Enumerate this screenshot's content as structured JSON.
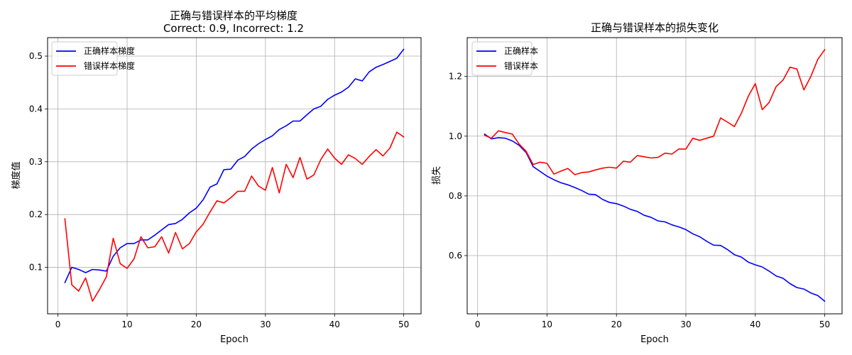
{
  "colors": {
    "blue": "#0000ff",
    "red": "#ff0000",
    "grid": "#b0b0b0"
  },
  "chart_data": [
    {
      "type": "line",
      "title": "正确与错误样本的平均梯度",
      "subtitle": "Correct: 0.9, Incorrect: 1.2",
      "xlabel": "Epoch",
      "ylabel": "梯度值",
      "xlim": [
        -1.5,
        52.5
      ],
      "ylim": [
        0.012,
        0.535
      ],
      "xticks": [
        0,
        10,
        20,
        30,
        40,
        50
      ],
      "yticks": [
        0.1,
        0.2,
        0.3,
        0.4,
        0.5
      ],
      "ytick_labels": [
        "0.1",
        "0.2",
        "0.3",
        "0.4",
        "0.5"
      ],
      "grid": true,
      "legend": "upper-left",
      "x": [
        1,
        2,
        3,
        4,
        5,
        6,
        7,
        8,
        9,
        10,
        11,
        12,
        13,
        14,
        15,
        16,
        17,
        18,
        19,
        20,
        21,
        22,
        23,
        24,
        25,
        26,
        27,
        28,
        29,
        30,
        31,
        32,
        33,
        34,
        35,
        36,
        37,
        38,
        39,
        40,
        41,
        42,
        43,
        44,
        45,
        46,
        47,
        48,
        49,
        50
      ],
      "series": [
        {
          "name": "正确样本梯度",
          "color": "#0000ff",
          "values": [
            0.071,
            0.1,
            0.096,
            0.09,
            0.096,
            0.095,
            0.093,
            0.121,
            0.137,
            0.145,
            0.145,
            0.152,
            0.152,
            0.161,
            0.171,
            0.181,
            0.183,
            0.191,
            0.203,
            0.212,
            0.228,
            0.252,
            0.258,
            0.285,
            0.286,
            0.303,
            0.31,
            0.324,
            0.334,
            0.342,
            0.349,
            0.361,
            0.368,
            0.377,
            0.377,
            0.389,
            0.4,
            0.405,
            0.418,
            0.426,
            0.432,
            0.441,
            0.457,
            0.453,
            0.47,
            0.479,
            0.484,
            0.49,
            0.496,
            0.513
          ]
        },
        {
          "name": "错误样本梯度",
          "color": "#ff0000",
          "values": [
            0.192,
            0.067,
            0.055,
            0.08,
            0.036,
            0.058,
            0.082,
            0.155,
            0.107,
            0.098,
            0.116,
            0.158,
            0.137,
            0.139,
            0.158,
            0.127,
            0.166,
            0.135,
            0.145,
            0.167,
            0.182,
            0.205,
            0.226,
            0.222,
            0.232,
            0.244,
            0.244,
            0.273,
            0.254,
            0.246,
            0.289,
            0.241,
            0.295,
            0.27,
            0.308,
            0.267,
            0.275,
            0.304,
            0.324,
            0.307,
            0.295,
            0.313,
            0.306,
            0.295,
            0.31,
            0.323,
            0.311,
            0.326,
            0.356,
            0.347
          ]
        }
      ]
    },
    {
      "type": "line",
      "title": "正确与错误样本的损失变化",
      "xlabel": "Epoch",
      "ylabel": "损失",
      "xlim": [
        -1.5,
        52.5
      ],
      "ylim": [
        0.405,
        1.33
      ],
      "xticks": [
        0,
        10,
        20,
        30,
        40,
        50
      ],
      "yticks": [
        0.6,
        0.8,
        1.0,
        1.2
      ],
      "ytick_labels": [
        "0.6",
        "0.8",
        "1.0",
        "1.2"
      ],
      "grid": true,
      "legend": "upper-left",
      "x": [
        1,
        2,
        3,
        4,
        5,
        6,
        7,
        8,
        9,
        10,
        11,
        12,
        13,
        14,
        15,
        16,
        17,
        18,
        19,
        20,
        21,
        22,
        23,
        24,
        25,
        26,
        27,
        28,
        29,
        30,
        31,
        32,
        33,
        34,
        35,
        36,
        37,
        38,
        39,
        40,
        41,
        42,
        43,
        44,
        45,
        46,
        47,
        48,
        49,
        50
      ],
      "series": [
        {
          "name": "正确样本",
          "color": "#0000ff",
          "values": [
            1.007,
            0.991,
            0.995,
            0.993,
            0.984,
            0.969,
            0.945,
            0.898,
            0.882,
            0.866,
            0.854,
            0.844,
            0.837,
            0.828,
            0.818,
            0.806,
            0.804,
            0.788,
            0.778,
            0.774,
            0.766,
            0.755,
            0.748,
            0.735,
            0.728,
            0.716,
            0.713,
            0.703,
            0.696,
            0.687,
            0.673,
            0.663,
            0.648,
            0.635,
            0.634,
            0.62,
            0.603,
            0.595,
            0.578,
            0.569,
            0.562,
            0.548,
            0.532,
            0.524,
            0.506,
            0.493,
            0.488,
            0.475,
            0.466,
            0.447
          ]
        },
        {
          "name": "错误样本",
          "color": "#ff0000",
          "values": [
            1.003,
            0.993,
            1.018,
            1.012,
            1.007,
            0.973,
            0.949,
            0.905,
            0.913,
            0.909,
            0.873,
            0.883,
            0.892,
            0.871,
            0.878,
            0.88,
            0.887,
            0.893,
            0.896,
            0.893,
            0.916,
            0.913,
            0.935,
            0.931,
            0.927,
            0.929,
            0.943,
            0.94,
            0.957,
            0.957,
            0.993,
            0.986,
            0.993,
            1.0,
            1.061,
            1.047,
            1.032,
            1.077,
            1.134,
            1.176,
            1.089,
            1.113,
            1.166,
            1.188,
            1.231,
            1.225,
            1.155,
            1.2,
            1.257,
            1.29
          ]
        }
      ]
    }
  ]
}
